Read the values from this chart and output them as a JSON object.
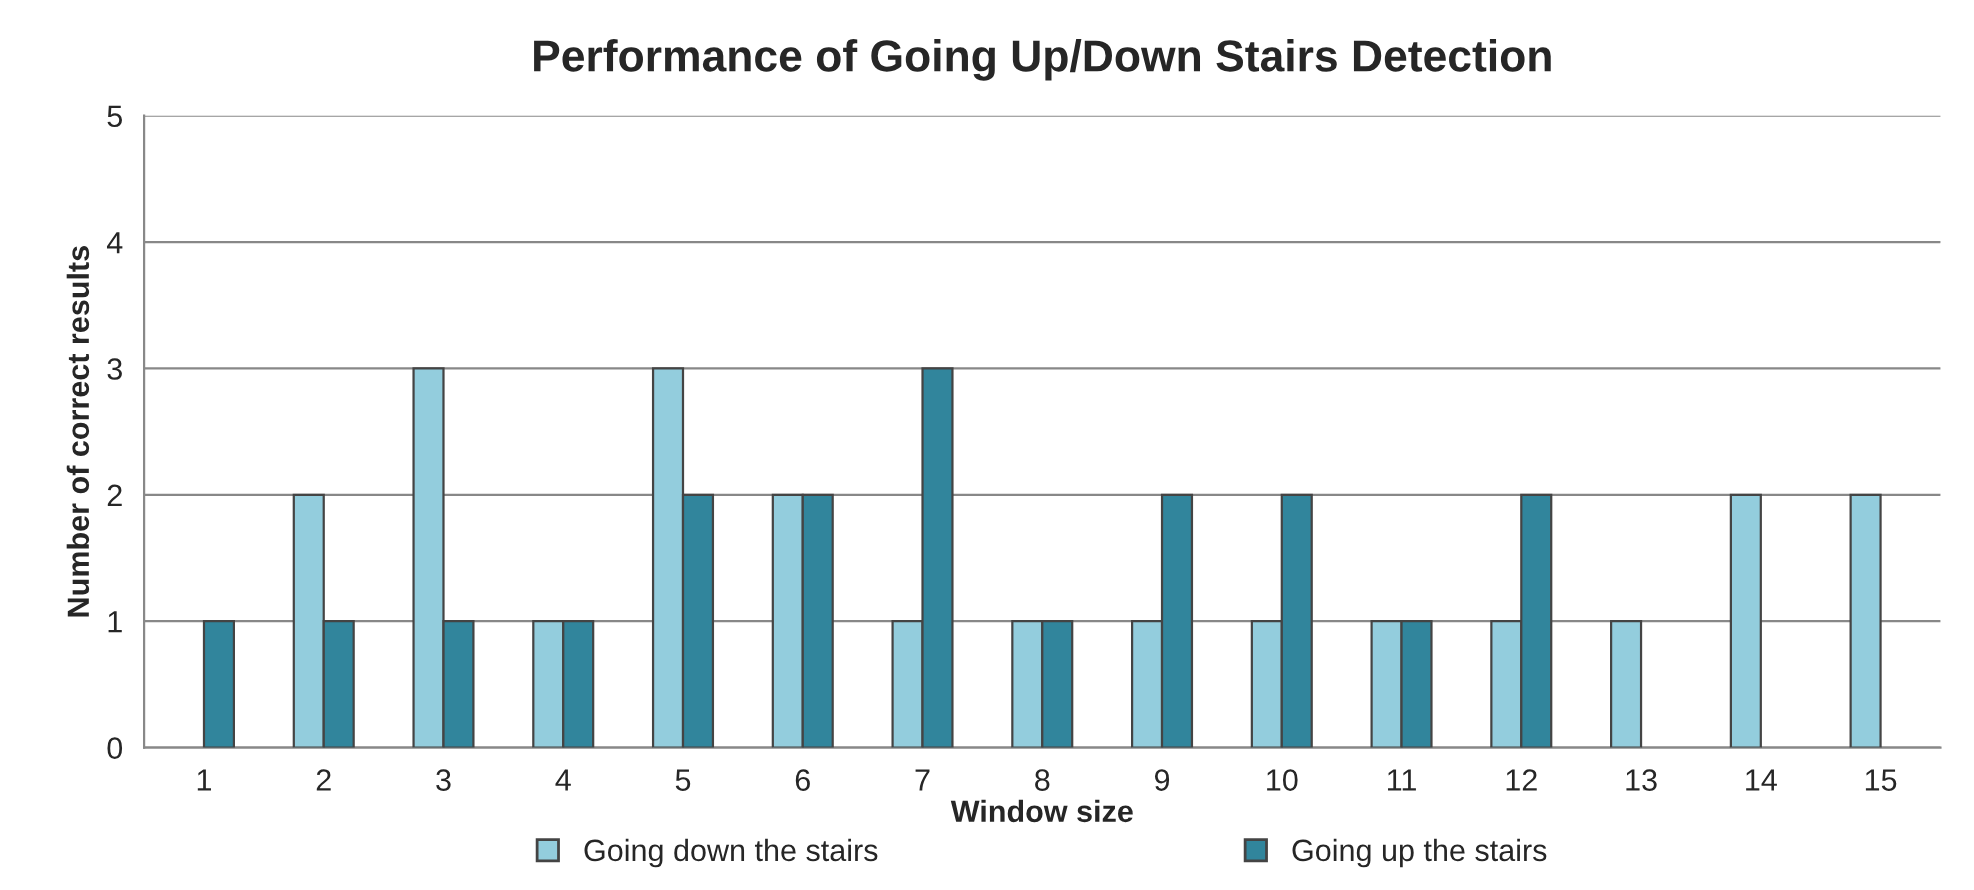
{
  "chart_data": {
    "type": "bar",
    "title": "Performance of Going Up/Down Stairs Detection",
    "xlabel": "Window size",
    "ylabel": "Number of correct results",
    "categories": [
      "1",
      "2",
      "3",
      "4",
      "5",
      "6",
      "7",
      "8",
      "9",
      "10",
      "11",
      "12",
      "13",
      "14",
      "15"
    ],
    "series": [
      {
        "name": "Going down the stairs",
        "color": "#93cddd",
        "values": [
          0,
          2,
          3,
          1,
          3,
          2,
          1,
          1,
          1,
          1,
          1,
          1,
          1,
          2,
          2
        ]
      },
      {
        "name": "Going up the stairs",
        "color": "#31859c",
        "values": [
          1,
          1,
          1,
          1,
          2,
          2,
          3,
          1,
          2,
          2,
          1,
          2,
          0,
          0,
          0
        ]
      }
    ],
    "ylim": [
      0,
      5
    ],
    "yticks": [
      0,
      1,
      2,
      3,
      4,
      5
    ],
    "grid": "y",
    "legend": "bottom"
  }
}
